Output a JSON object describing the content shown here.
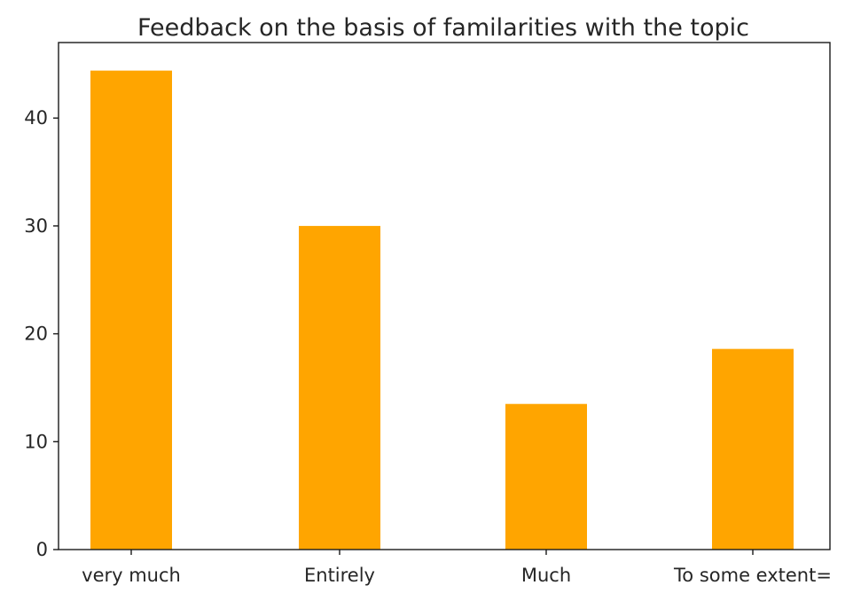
{
  "chart_data": {
    "type": "bar",
    "title": "Feedback on the basis of familarities with the topic",
    "xlabel": "",
    "ylabel": "",
    "categories": [
      "very much",
      "Entirely",
      "Much",
      "To some extent="
    ],
    "values": [
      44.4,
      30.0,
      13.5,
      18.6
    ],
    "ylim": [
      0,
      47
    ],
    "yticks": [
      0,
      10,
      20,
      30,
      40
    ],
    "grid": false,
    "bar_color": "#FFA500"
  }
}
